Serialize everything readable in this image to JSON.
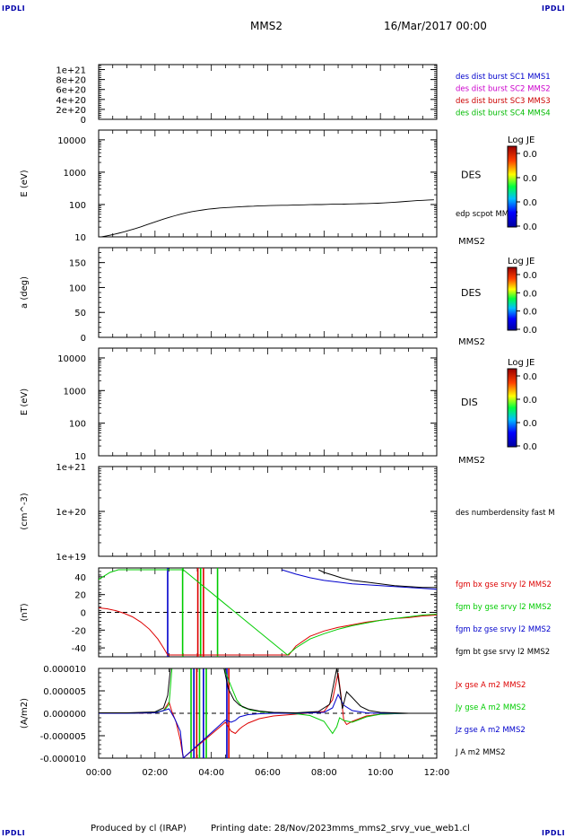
{
  "header": {
    "spacecraft": "MMS2",
    "date": "16/Mar/2017 00:00",
    "corner_label": "IPDLI"
  },
  "footer": {
    "producer": "Produced by cl (IRAP)",
    "printing": "Printing date: 28/Nov/2023",
    "file": "mms_mms2_srvy_vue_web1.cl"
  },
  "colors": {
    "mms1": "#0000cc",
    "mms2": "#cc00cc",
    "mms3": "#cc0000",
    "mms4": "#00bb00",
    "red": "#dd0000",
    "green": "#00cc00",
    "blue": "#0000cc",
    "black": "#000000"
  },
  "x_axis": {
    "range_hours": [
      0,
      12
    ],
    "ticks": [
      "00:00",
      "02:00",
      "04:00",
      "06:00",
      "08:00",
      "10:00",
      "12:00"
    ]
  },
  "colorbars": [
    {
      "title": "Log JE",
      "labels": [
        "0.0",
        "0.0",
        "0.0",
        "0.0"
      ]
    },
    {
      "title": "Log JE",
      "labels": [
        "0.0",
        "0.0",
        "0.0",
        "0.0"
      ]
    },
    {
      "title": "Log JE",
      "labels": [
        "0.0",
        "0.0",
        "0.0",
        "0.0"
      ]
    }
  ],
  "chart_data": [
    {
      "type": "line",
      "ticks": [
        "1e+21",
        "8e+20",
        "6e+20",
        "4e+20",
        "2e+20",
        "0"
      ],
      "ylim": [
        0,
        1.1e+21
      ],
      "legend": [
        {
          "text": "des dist burst SC1 MMS1",
          "color": "mms1"
        },
        {
          "text": "des dist burst SC2 MMS2",
          "color": "mms2"
        },
        {
          "text": "des dist burst SC3 MMS3",
          "color": "mms3"
        },
        {
          "text": "des dist burst SC4 MMS4",
          "color": "mms4"
        }
      ]
    },
    {
      "type": "heatmap",
      "ylabel": "E (eV)",
      "scale": "log",
      "ylim": [
        10,
        20000
      ],
      "ticks": [
        "10000",
        "1000",
        "100",
        "10"
      ],
      "right_label": "DES",
      "side_label": "edp scpot MMS2",
      "bottom_label": "MMS2",
      "scpot_line": {
        "x": [
          0.1,
          0.3,
          0.5,
          0.7,
          0.9,
          1.1,
          1.3,
          1.5,
          1.7,
          1.9,
          2.1,
          2.3,
          2.5,
          2.7,
          2.9,
          3.1,
          3.3,
          3.5,
          3.7,
          3.9,
          4.1,
          4.3,
          4.5,
          4.7,
          4.9,
          5.1,
          5.3,
          5.5,
          5.7,
          5.9,
          6.1,
          6.3,
          6.5,
          6.7,
          6.9,
          7.1,
          7.3,
          7.5,
          7.7,
          7.9,
          8.1,
          8.3,
          8.5,
          8.7,
          8.9,
          9.1,
          9.3,
          9.5,
          9.7,
          9.9,
          10.1,
          10.3,
          10.5,
          10.7,
          10.9,
          11.1,
          11.3,
          11.5,
          11.7,
          11.9
        ],
        "y": [
          10,
          10.8,
          11.7,
          12.9,
          14.3,
          16,
          18,
          20.5,
          23.5,
          27,
          31,
          35.5,
          40,
          45,
          50,
          55,
          60,
          64,
          68,
          72,
          75,
          78,
          80,
          82,
          84,
          86,
          88,
          89,
          91,
          92,
          93,
          94,
          95,
          95,
          96,
          97,
          98,
          99,
          100,
          100,
          101,
          102,
          102,
          103,
          104,
          105,
          106,
          107,
          108,
          110,
          112,
          115,
          118,
          121,
          125,
          128,
          132,
          135,
          138,
          140
        ]
      }
    },
    {
      "type": "heatmap",
      "ylabel": "a (deg)",
      "ylim": [
        0,
        180
      ],
      "ticks": [
        "150",
        "100",
        "50",
        "0"
      ],
      "right_label": "DES",
      "bottom_label": "MMS2"
    },
    {
      "type": "heatmap",
      "ylabel": "E (eV)",
      "scale": "log",
      "ylim": [
        10,
        20000
      ],
      "ticks": [
        "10000",
        "1000",
        "100",
        "10"
      ],
      "right_label": "DIS",
      "bottom_label": "MMS2"
    },
    {
      "type": "line",
      "ylabel": "(cm^-3)",
      "scale": "log",
      "ylim": [
        1e+19,
        1e+21
      ],
      "ticks": [
        "1e+21",
        "1e+20",
        "1e+19"
      ],
      "legend": [
        {
          "text": "des numberdensity fast M",
          "color": "black"
        }
      ]
    },
    {
      "type": "line",
      "ylabel": "(nT)",
      "ylim": [
        -50,
        50
      ],
      "ticks": [
        "40",
        "20",
        "0",
        "-20",
        "-40"
      ],
      "legend": [
        {
          "text": "fgm bx gse srvy l2 MMS2",
          "color": "red"
        },
        {
          "text": "fgm by gse srvy l2 MMS2",
          "color": "green"
        },
        {
          "text": "fgm bz gse srvy l2 MMS2",
          "color": "blue"
        },
        {
          "text": "fgm bt gse srvy l2 MMS2",
          "color": "black"
        }
      ],
      "series": [
        {
          "name": "fgm bx gse srvy l2 MMS2",
          "color": "red",
          "x": [
            0,
            0.3,
            0.6,
            0.9,
            1.2,
            1.5,
            1.8,
            2.1,
            2.3,
            2.45,
            6.75,
            7.0,
            7.5,
            8.0,
            8.5,
            9.0,
            9.5,
            10.0,
            10.5,
            11.0,
            11.5,
            12.0
          ],
          "y": [
            5,
            4,
            2,
            -1,
            -5,
            -11,
            -19,
            -30,
            -40,
            -48,
            -48,
            -38,
            -27,
            -21,
            -17,
            -14,
            -11,
            -9,
            -7,
            -6,
            -4,
            -3
          ]
        },
        {
          "name": "fgm by gse srvy l2 MMS2",
          "color": "green",
          "x": [
            0,
            0.2,
            0.4,
            0.7,
            1.0,
            1.3,
            1.6,
            1.9,
            2.2,
            2.5,
            2.8,
            3.0,
            6.7,
            7.0,
            7.5,
            8.0,
            8.5,
            9.0,
            9.5,
            10.0,
            10.5,
            11.0,
            11.5,
            12.0
          ],
          "y": [
            37,
            41,
            45,
            48,
            48,
            48,
            48,
            48,
            48,
            48,
            48,
            48,
            -48,
            -40,
            -30,
            -24,
            -19,
            -15,
            -12,
            -9,
            -7,
            -5,
            -3,
            -2
          ]
        },
        {
          "name": "fgm bz gse srvy l2 MMS2",
          "color": "blue",
          "x": [
            6.5,
            7.0,
            7.5,
            8.0,
            8.5,
            9.0,
            9.5,
            10.0,
            10.5,
            11.0,
            11.5,
            12.0
          ],
          "y": [
            48,
            43,
            39,
            36,
            34,
            32,
            31,
            30,
            29,
            28,
            27,
            26
          ]
        },
        {
          "name": "fgm bt gse srvy l2 MMS2",
          "color": "black",
          "x": [
            7.8,
            8.0,
            8.3,
            8.6,
            9.0,
            9.5,
            10.0,
            10.5,
            11.0,
            11.5,
            12.0
          ],
          "y": [
            48,
            45,
            42,
            39,
            36,
            34,
            32,
            30,
            29,
            28,
            28
          ]
        }
      ],
      "vertical_lines": [
        {
          "x": 2.45,
          "color": "blue"
        },
        {
          "x": 2.98,
          "color": "green"
        },
        {
          "x": 3.52,
          "color": "red"
        },
        {
          "x": 3.62,
          "color": "green"
        },
        {
          "x": 3.72,
          "color": "red"
        },
        {
          "x": 4.22,
          "color": "green"
        }
      ]
    },
    {
      "type": "line",
      "ylabel": "(A/m2)",
      "ylim": [
        -1e-05,
        1e-05
      ],
      "ticks": [
        "0.000010",
        "0.000005",
        "0.000000",
        "-0.000005",
        "-0.000010"
      ],
      "legend": [
        {
          "text": "Jx gse A m2 MMS2",
          "color": "red"
        },
        {
          "text": "Jy gse A m2 MMS2",
          "color": "green"
        },
        {
          "text": "Jz gse A m2 MMS2",
          "color": "blue"
        },
        {
          "text": "J A m2 MMS2",
          "color": "black"
        }
      ],
      "series": [
        {
          "name": "Jx gse A m2 MMS2",
          "color": "red",
          "x": [
            0,
            1,
            2,
            2.3,
            2.5,
            2.6,
            2.75,
            2.9,
            3.0,
            4.5,
            4.7,
            4.85,
            5.0,
            5.1,
            5.3,
            5.7,
            6.2,
            7.0,
            8.0,
            8.3,
            8.5,
            8.6,
            8.7,
            8.8,
            9.0,
            9.5,
            10,
            11,
            12
          ],
          "y": [
            0,
            0,
            1e-07,
            6e-07,
            2.5e-06,
            4e-07,
            -2e-06,
            -6e-06,
            -1e-05,
            -2e-06,
            -4e-06,
            -4.5e-06,
            -3.5e-06,
            -3e-06,
            -2.2e-06,
            -1.2e-06,
            -6e-07,
            -2e-07,
            4e-07,
            3e-06,
            9e-06,
            4e-06,
            -1.5e-06,
            -2.5e-06,
            -1.8e-06,
            -6e-07,
            -2e-07,
            0,
            0
          ]
        },
        {
          "name": "Jy gse A m2 MMS2",
          "color": "green",
          "x": [
            0,
            1,
            2,
            2.3,
            2.4,
            2.5,
            2.6,
            4.45,
            4.7,
            4.9,
            5.1,
            5.4,
            5.8,
            6.3,
            7.0,
            7.5,
            8.0,
            8.3,
            8.45,
            8.55,
            8.7,
            9.0,
            9.5,
            10,
            11,
            12
          ],
          "y": [
            0,
            0,
            2e-07,
            6e-07,
            1.2e-06,
            2e-06,
            1e-05,
            1e-05,
            6e-06,
            3e-06,
            1.4e-06,
            7e-07,
            3e-07,
            1e-07,
            -1e-07,
            -5e-07,
            -1.8e-06,
            -4.5e-06,
            -3e-06,
            -1e-06,
            -1.6e-06,
            -2e-06,
            -8e-07,
            -2e-07,
            0,
            0
          ]
        },
        {
          "name": "Jz gse A m2 MMS2",
          "color": "blue",
          "x": [
            0,
            1,
            2,
            2.3,
            2.5,
            2.7,
            2.9,
            3.0,
            4.5,
            4.7,
            4.85,
            5.0,
            5.3,
            5.7,
            6.2,
            7.0,
            8.0,
            8.3,
            8.5,
            8.7,
            9.0,
            9.5,
            10,
            11,
            12
          ],
          "y": [
            0,
            0,
            1e-07,
            6e-07,
            1e-06,
            -1.2e-06,
            -4e-06,
            -1e-05,
            -1.5e-06,
            -2e-06,
            -1.6e-06,
            -8e-07,
            -3e-07,
            -1e-07,
            0,
            0,
            2e-07,
            1.2e-06,
            4.2e-06,
            1.8e-06,
            6e-07,
            1e-07,
            0,
            0,
            0
          ]
        },
        {
          "name": "J A m2 MMS2",
          "color": "black",
          "x": [
            0,
            1,
            2,
            2.3,
            2.45,
            2.55,
            4.45,
            4.6,
            4.8,
            5.0,
            5.3,
            5.7,
            6.2,
            7.0,
            7.8,
            8.2,
            8.45,
            8.55,
            8.65,
            8.8,
            9.0,
            9.3,
            9.6,
            10,
            10.5,
            11,
            12
          ],
          "y": [
            1e-07,
            1e-07,
            3e-07,
            1.2e-06,
            4e-06,
            1e-05,
            1e-05,
            5.5e-06,
            3e-06,
            1.8e-06,
            1e-06,
            5e-07,
            2e-07,
            1e-07,
            4e-07,
            2e-06,
            1e-05,
            6e-06,
            1e-06,
            4.8e-06,
            3.5e-06,
            1.5e-06,
            6e-07,
            2e-07,
            1e-07,
            0,
            0
          ]
        }
      ],
      "vertical_lines": [
        {
          "x": 3.28,
          "color": "green"
        },
        {
          "x": 3.38,
          "color": "blue"
        },
        {
          "x": 3.48,
          "color": "red"
        },
        {
          "x": 3.58,
          "color": "green"
        },
        {
          "x": 3.72,
          "color": "blue"
        },
        {
          "x": 3.82,
          "color": "green"
        },
        {
          "x": 4.55,
          "color": "blue"
        },
        {
          "x": 4.62,
          "color": "red"
        }
      ]
    }
  ]
}
